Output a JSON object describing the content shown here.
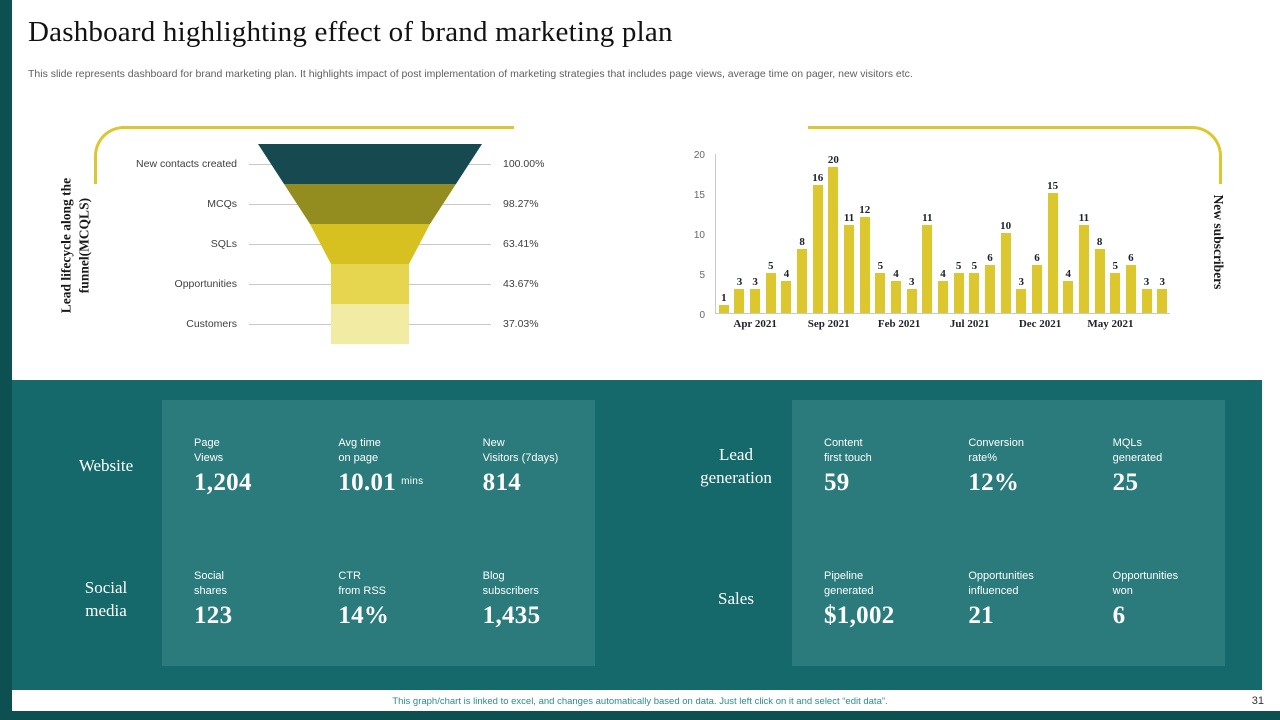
{
  "slide": {
    "title": "Dashboard highlighting effect of brand marketing plan",
    "subtitle": "This slide represents dashboard for brand marketing plan. It highlights impact of post implementation of marketing strategies that includes page views, average time on pager, new visitors etc.",
    "footnote": "This graph/chart is linked to excel, and changes automatically based on data. Just left click on it and select “edit data”.",
    "page_number": "31"
  },
  "colors": {
    "accent_yellow": "#dcc72f",
    "dark_teal_strip": "#0d5052",
    "panel_teal": "#15696b",
    "panel_box_teal": "#2b7b7c",
    "bar_fill": "#dcc72f",
    "funnel_fills": [
      "#174a50",
      "#938d1f",
      "#d6c120",
      "#e6d54e",
      "#f2eba3"
    ]
  },
  "chart_data": [
    {
      "type": "funnel",
      "title": "Lead lifecycle along the funnel(MCQLS)",
      "stages": [
        {
          "label": "New contacts created",
          "value": "100.00%"
        },
        {
          "label": "MCQs",
          "value": "98.27%"
        },
        {
          "label": "SQLs",
          "value": "63.41%"
        },
        {
          "label": "Opportunities",
          "value": "43.67%"
        },
        {
          "label": "Customers",
          "value": "37.03%"
        }
      ]
    },
    {
      "type": "bar",
      "ylabel_right": "New subscribers",
      "values": [
        1,
        3,
        3,
        5,
        4,
        8,
        16,
        20,
        11,
        12,
        5,
        4,
        3,
        11,
        4,
        5,
        5,
        6,
        10,
        3,
        6,
        15,
        4,
        11,
        8,
        5,
        6,
        3,
        3
      ],
      "y_ticks": [
        0,
        5,
        10,
        15,
        20
      ],
      "ylim": [
        0,
        20
      ],
      "grid": false,
      "x_tick_labels": [
        "Apr 2021",
        "Sep 2021",
        "Feb 2021",
        "Jul 2021",
        "Dec 2021",
        "May 2021"
      ],
      "x_tick_positions": [
        2,
        6.7,
        11.2,
        15.7,
        20.2,
        24.7
      ]
    }
  ],
  "metrics": {
    "groups": [
      {
        "rows": [
          {
            "label": "Website",
            "kpis": [
              {
                "label": "Page\nViews",
                "value": "1,204"
              },
              {
                "label": "Avg time\non page",
                "value": "10.01",
                "suffix": "mins"
              },
              {
                "label": "New\nVisitors (7days)",
                "value": "814"
              }
            ]
          },
          {
            "label": "Social\nmedia",
            "kpis": [
              {
                "label": "Social\nshares",
                "value": "123"
              },
              {
                "label": "CTR\nfrom RSS",
                "value": "14%"
              },
              {
                "label": "Blog\nsubscribers",
                "value": "1,435"
              }
            ]
          }
        ]
      },
      {
        "rows": [
          {
            "label": "Lead\ngeneration",
            "kpis": [
              {
                "label": "Content\nfirst touch",
                "value": "59"
              },
              {
                "label": "Conversion\nrate%",
                "value": "12%"
              },
              {
                "label": "MQLs\ngenerated",
                "value": "25"
              }
            ]
          },
          {
            "label": "Sales",
            "kpis": [
              {
                "label": "Pipeline\ngenerated",
                "value": "$1,002"
              },
              {
                "label": "Opportunities\ninfluenced",
                "value": "21"
              },
              {
                "label": "Opportunities\nwon",
                "value": "6"
              }
            ]
          }
        ]
      }
    ]
  }
}
